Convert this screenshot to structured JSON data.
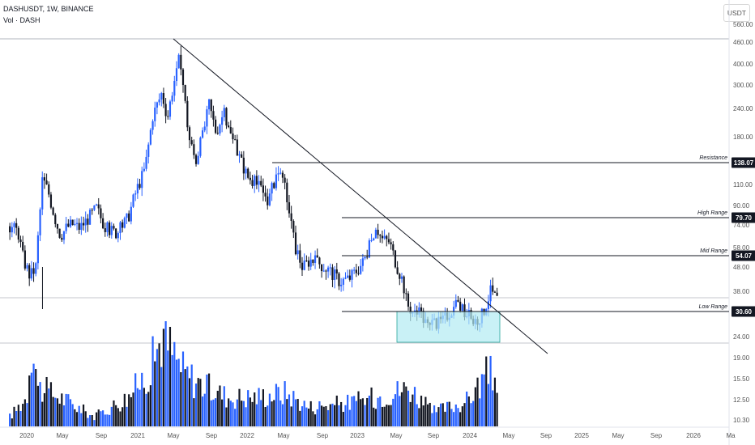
{
  "header": {
    "symbol": "DASHUSDT, 1W, BINANCE",
    "volume_label": "Vol · DASH",
    "currency": "USDT"
  },
  "chart_data": {
    "type": "candlestick",
    "y_scale": "log",
    "yticks": [
      "560.00",
      "460.00",
      "400.00",
      "300.00",
      "240.00",
      "180.00",
      "110.00",
      "90.00",
      "74.00",
      "58.00",
      "48.00",
      "38.00",
      "24.00",
      "19.00",
      "15.50",
      "12.50",
      "10.30"
    ],
    "xticks": [
      "2020",
      "May",
      "Sep",
      "2021",
      "May",
      "Sep",
      "2022",
      "May",
      "Sep",
      "2023",
      "May",
      "Sep",
      "2024",
      "May",
      "Sep",
      "2025",
      "May",
      "Sep",
      "2026",
      "Ma"
    ],
    "levels": [
      {
        "name": "Resistance",
        "value": "138.07"
      },
      {
        "name": "High Range",
        "value": "79.70"
      },
      {
        "name": "Mid Range",
        "value": "54.07"
      },
      {
        "name": "Low Range",
        "value": "30.60"
      }
    ],
    "price_path": [
      [
        2019.85,
        73
      ],
      [
        2019.92,
        70
      ],
      [
        2019.97,
        52
      ],
      [
        2020.03,
        44
      ],
      [
        2020.08,
        48
      ],
      [
        2020.14,
        118
      ],
      [
        2020.2,
        100
      ],
      [
        2020.25,
        80
      ],
      [
        2020.3,
        66
      ],
      [
        2020.35,
        72
      ],
      [
        2020.4,
        75
      ],
      [
        2020.47,
        72
      ],
      [
        2020.55,
        80
      ],
      [
        2020.62,
        88
      ],
      [
        2020.7,
        72
      ],
      [
        2020.8,
        68
      ],
      [
        2020.9,
        80
      ],
      [
        2020.96,
        100
      ],
      [
        2021.05,
        130
      ],
      [
        2021.12,
        225
      ],
      [
        2021.2,
        280
      ],
      [
        2021.25,
        220
      ],
      [
        2021.3,
        300
      ],
      [
        2021.35,
        400
      ],
      [
        2021.39,
        300
      ],
      [
        2021.44,
        180
      ],
      [
        2021.5,
        140
      ],
      [
        2021.56,
        180
      ],
      [
        2021.62,
        250
      ],
      [
        2021.68,
        190
      ],
      [
        2021.75,
        230
      ],
      [
        2021.8,
        190
      ],
      [
        2021.88,
        150
      ],
      [
        2021.96,
        120
      ],
      [
        2022.05,
        110
      ],
      [
        2022.15,
        95
      ],
      [
        2022.22,
        125
      ],
      [
        2022.3,
        105
      ],
      [
        2022.38,
        60
      ],
      [
        2022.45,
        48
      ],
      [
        2022.52,
        52
      ],
      [
        2022.6,
        50
      ],
      [
        2022.7,
        46
      ],
      [
        2022.78,
        42
      ],
      [
        2022.86,
        43
      ],
      [
        2022.92,
        46
      ],
      [
        2022.98,
        50
      ],
      [
        2023.05,
        60
      ],
      [
        2023.1,
        74
      ],
      [
        2023.15,
        64
      ],
      [
        2023.22,
        62
      ],
      [
        2023.28,
        50
      ],
      [
        2023.34,
        42
      ],
      [
        2023.38,
        33
      ],
      [
        2023.44,
        30
      ],
      [
        2023.5,
        30
      ],
      [
        2023.57,
        26
      ],
      [
        2023.63,
        27
      ],
      [
        2023.7,
        28
      ],
      [
        2023.76,
        31
      ],
      [
        2023.83,
        33
      ],
      [
        2023.88,
        31
      ],
      [
        2023.93,
        29
      ],
      [
        2023.98,
        28
      ],
      [
        2024.05,
        30
      ],
      [
        2024.12,
        38
      ],
      [
        2024.18,
        35
      ]
    ],
    "volume_path": [
      [
        2019.85,
        0.1
      ],
      [
        2020.0,
        0.3
      ],
      [
        2020.05,
        1.0
      ],
      [
        2020.1,
        0.4
      ],
      [
        2020.3,
        0.3
      ],
      [
        2020.6,
        0.1
      ],
      [
        2020.9,
        0.3
      ],
      [
        2021.1,
        0.6
      ],
      [
        2021.2,
        0.95
      ],
      [
        2021.3,
        0.75
      ],
      [
        2021.4,
        0.55
      ],
      [
        2021.6,
        0.4
      ],
      [
        2021.8,
        0.3
      ],
      [
        2022.0,
        0.3
      ],
      [
        2022.3,
        0.35
      ],
      [
        2022.5,
        0.2
      ],
      [
        2022.9,
        0.25
      ],
      [
        2023.1,
        0.3
      ],
      [
        2023.4,
        0.4
      ],
      [
        2023.6,
        0.15
      ],
      [
        2023.9,
        0.25
      ],
      [
        2024.1,
        0.55
      ],
      [
        2024.18,
        0.45
      ]
    ]
  }
}
